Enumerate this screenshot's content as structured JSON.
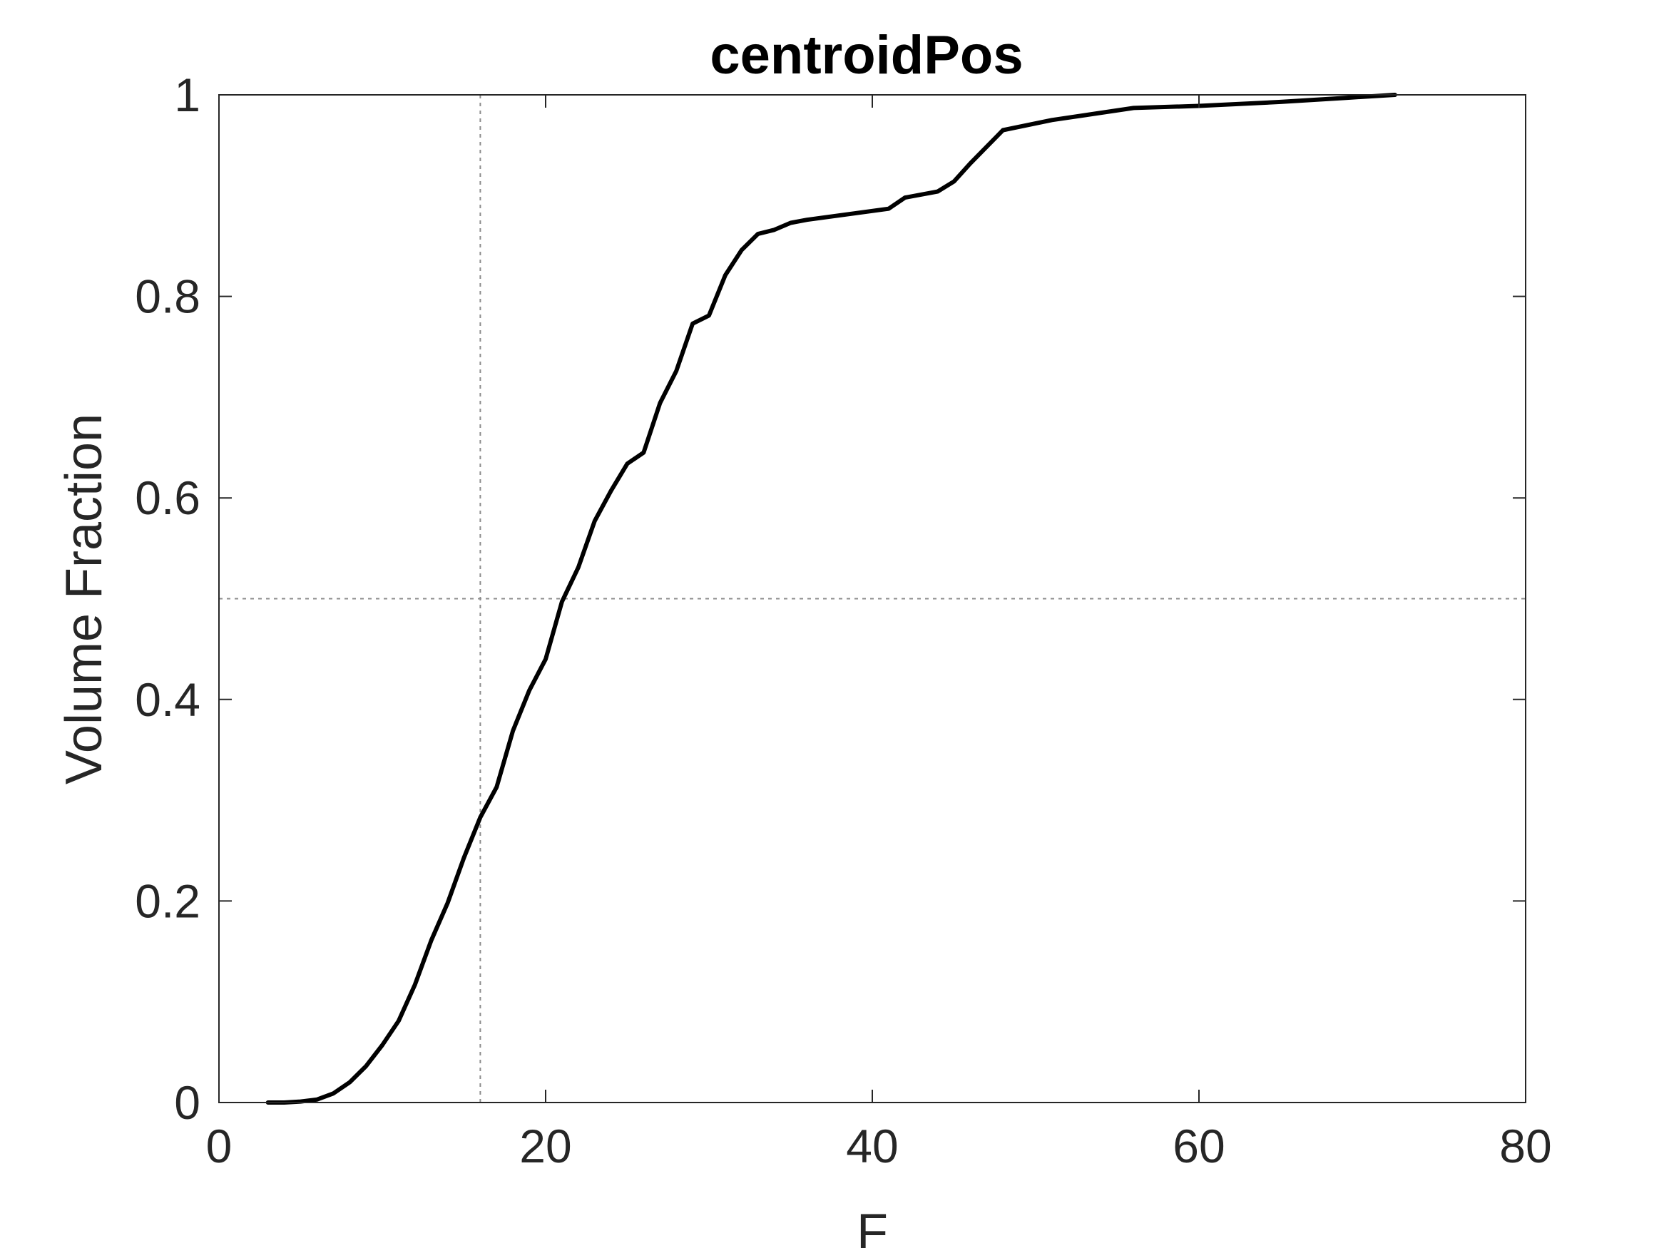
{
  "chart_data": {
    "type": "line",
    "title": "centroidPos",
    "xlabel": "F",
    "ylabel": "Volume Fraction",
    "xlim": [
      0,
      80
    ],
    "ylim": [
      0,
      1
    ],
    "xticks": [
      0,
      20,
      40,
      60,
      80
    ],
    "xtick_labels": [
      "0",
      "20",
      "40",
      "60",
      "80"
    ],
    "yticks": [
      0,
      0.2,
      0.4,
      0.6,
      0.8,
      1
    ],
    "ytick_labels": [
      "0",
      "0.2",
      "0.4",
      "0.6",
      "0.8",
      "1"
    ],
    "grid": false,
    "reference_lines": [
      {
        "orientation": "vertical",
        "value": 16,
        "style": "dotted"
      },
      {
        "orientation": "horizontal",
        "value": 0.5,
        "style": "dotted"
      }
    ],
    "series": [
      {
        "color": "#000000",
        "x": [
          3,
          4,
          5,
          6,
          7,
          8,
          9,
          10,
          11,
          12,
          13,
          14,
          15,
          16,
          17,
          18,
          19,
          20,
          21,
          22,
          23,
          24,
          25,
          26,
          27,
          28,
          29,
          30,
          31,
          32,
          33,
          34,
          35,
          36,
          41,
          42,
          44,
          45,
          46,
          48,
          51,
          56,
          60,
          65,
          69,
          72
        ],
        "y": [
          0,
          0,
          0.001,
          0.003,
          0.009,
          0.02,
          0.036,
          0.057,
          0.081,
          0.117,
          0.161,
          0.198,
          0.243,
          0.283,
          0.313,
          0.369,
          0.409,
          0.44,
          0.497,
          0.531,
          0.577,
          0.607,
          0.634,
          0.645,
          0.694,
          0.726,
          0.773,
          0.781,
          0.821,
          0.846,
          0.862,
          0.866,
          0.873,
          0.876,
          0.887,
          0.898,
          0.904,
          0.914,
          0.932,
          0.965,
          0.975,
          0.987,
          0.989,
          0.993,
          0.997,
          1.0
        ]
      }
    ]
  }
}
